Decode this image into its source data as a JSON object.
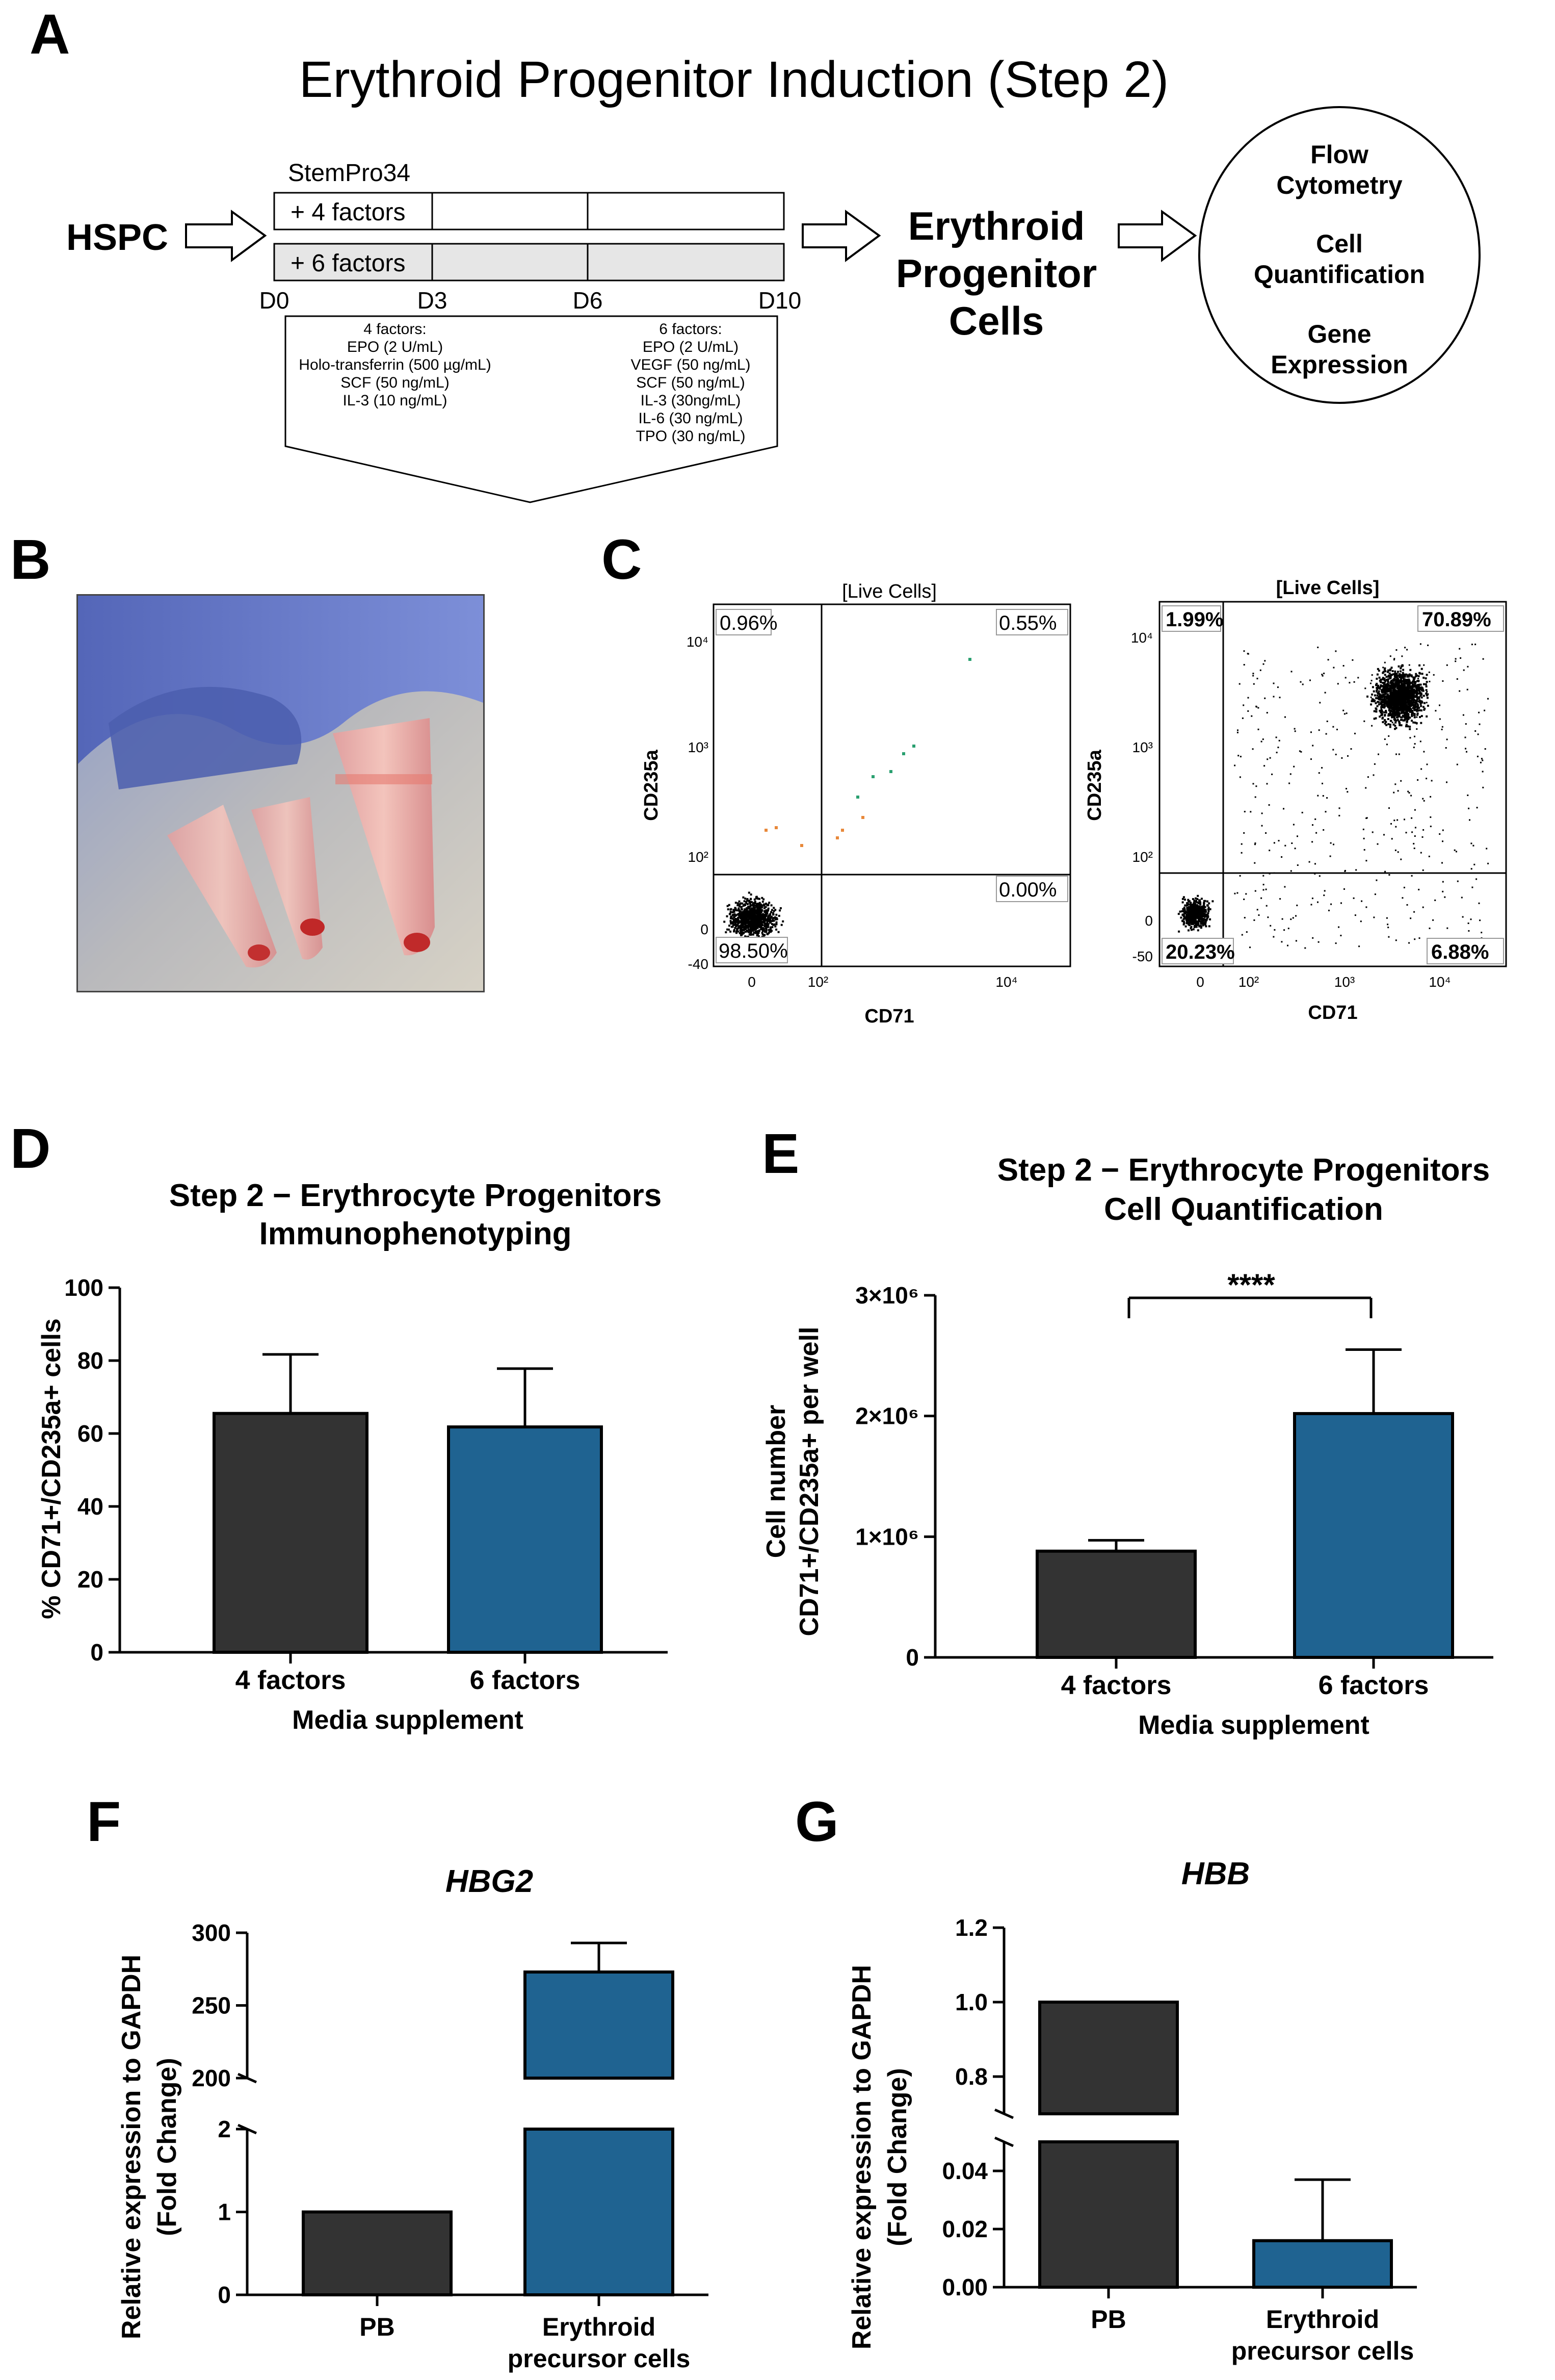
{
  "panel_a": {
    "letter": "A",
    "title": "Erythroid Progenitor Induction (Step 2)",
    "input_label": "HSPC",
    "medium_label": "StemPro34",
    "row1_label": "+ 4 factors",
    "row2_label": "+ 6 factors",
    "days": [
      "D0",
      "D3",
      "D6",
      "D10"
    ],
    "four_factors_title": "4 factors:",
    "four_factors": [
      "EPO (2 U/mL)",
      "Holo-transferrin (500 µg/mL)",
      "SCF (50 ng/mL)",
      "IL-3 (10 ng/mL)"
    ],
    "six_factors_title": "6 factors:",
    "six_factors": [
      "EPO (2 U/mL)",
      "VEGF (50 ng/mL)",
      "SCF (50 ng/mL)",
      "IL-3 (30ng/mL)",
      "IL-6 (30 ng/mL)",
      "TPO (30 ng/mL)"
    ],
    "output_label": [
      "Erythroid",
      "Progenitor",
      "Cells"
    ],
    "readouts": [
      "Flow",
      "Cytometry",
      "Cell",
      "Quantification",
      "Gene",
      "Expression"
    ]
  },
  "panel_b": {
    "letter": "B"
  },
  "panel_c": {
    "letter": "C",
    "plots": [
      {
        "gate": "[Live Cells]",
        "ylabel": "CD235a",
        "xlabel": "CD71",
        "quadrants": {
          "ul": "0.96%",
          "ur": "0.55%",
          "ll": "98.50%",
          "lr": "0.00%"
        },
        "yticks": [
          "10⁴",
          "10³",
          "10²",
          "0",
          "-40"
        ],
        "xticks": [
          "0",
          "10²",
          "10⁴"
        ]
      },
      {
        "gate": "[Live Cells]",
        "ylabel": "CD235a",
        "xlabel": "CD71",
        "quadrants": {
          "ul": "1.99%",
          "ur": "70.89%",
          "ll": "20.23%",
          "lr": "6.88%"
        },
        "yticks": [
          "10⁴",
          "10³",
          "10²",
          "0",
          "-50"
        ],
        "xticks": [
          "0",
          "10²",
          "10³",
          "10⁴"
        ]
      }
    ]
  },
  "chart_data": [
    {
      "id": "D",
      "type": "bar",
      "title": [
        "Step 2 − Erythrocyte Progenitors",
        "Immunophenotyping"
      ],
      "categories": [
        "4 factors",
        "6 factors"
      ],
      "values": [
        65.5,
        61.8
      ],
      "errors": [
        16.2,
        16.0
      ],
      "xlabel": "Media supplement",
      "ylabel": "% CD71+/CD235a+ cells",
      "ylim": [
        0,
        100
      ],
      "yticks": [
        "0",
        "20",
        "40",
        "60",
        "80",
        "100"
      ]
    },
    {
      "id": "E",
      "type": "bar",
      "title": [
        "Step 2 − Erythrocyte Progenitors",
        "Cell  Quantification"
      ],
      "categories": [
        "4 factors",
        "6 factors"
      ],
      "values": [
        880000,
        2020000
      ],
      "errors": [
        90000,
        530000
      ],
      "xlabel": "Media supplement",
      "ylabel": [
        "Cell number",
        "CD71+/CD235a+ per well"
      ],
      "ylim": [
        0,
        3000000
      ],
      "yticks": [
        "0",
        "1×10⁶",
        "2×10⁶",
        "3×10⁶"
      ],
      "significance": "****"
    },
    {
      "id": "F",
      "type": "bar",
      "title": "HBG2",
      "categories": [
        "PB",
        "Erythroid precursor cells"
      ],
      "values": [
        1,
        273
      ],
      "errors": [
        0,
        20
      ],
      "ylabel": [
        "Relative expression to GAPDH",
        "(Fold Change)"
      ],
      "broken_axis": {
        "lower": [
          0,
          2
        ],
        "upper": [
          200,
          300
        ]
      },
      "yticks_lower": [
        "0",
        "1",
        "2"
      ],
      "yticks_upper": [
        "200",
        "250",
        "300"
      ]
    },
    {
      "id": "G",
      "type": "bar",
      "title": "HBB",
      "categories": [
        "PB",
        "Erythroid precursor cells"
      ],
      "values": [
        1.0,
        0.016
      ],
      "errors": [
        0,
        0.021
      ],
      "ylabel": [
        "Relative expression to GAPDH",
        "(Fold Change)"
      ],
      "broken_axis": {
        "lower": [
          0,
          0.05
        ],
        "upper": [
          0.7,
          1.2
        ]
      },
      "yticks_lower": [
        "0.00",
        "0.02",
        "0.04"
      ],
      "yticks_upper": [
        "0.8",
        "1.0",
        "1.2"
      ]
    }
  ],
  "colors": {
    "dark_bar": "#333333",
    "blue_bar": "#1f6391",
    "orange_dot": "#e8883a",
    "green_dot": "#2aa070"
  },
  "panel_letters": {
    "d": "D",
    "e": "E",
    "f": "F",
    "g": "G"
  },
  "cat_lines": {
    "f_b1": "Erythroid",
    "f_b2": "precursor cells",
    "g_b1": "Erythroid",
    "g_b2": "precursor cells"
  }
}
